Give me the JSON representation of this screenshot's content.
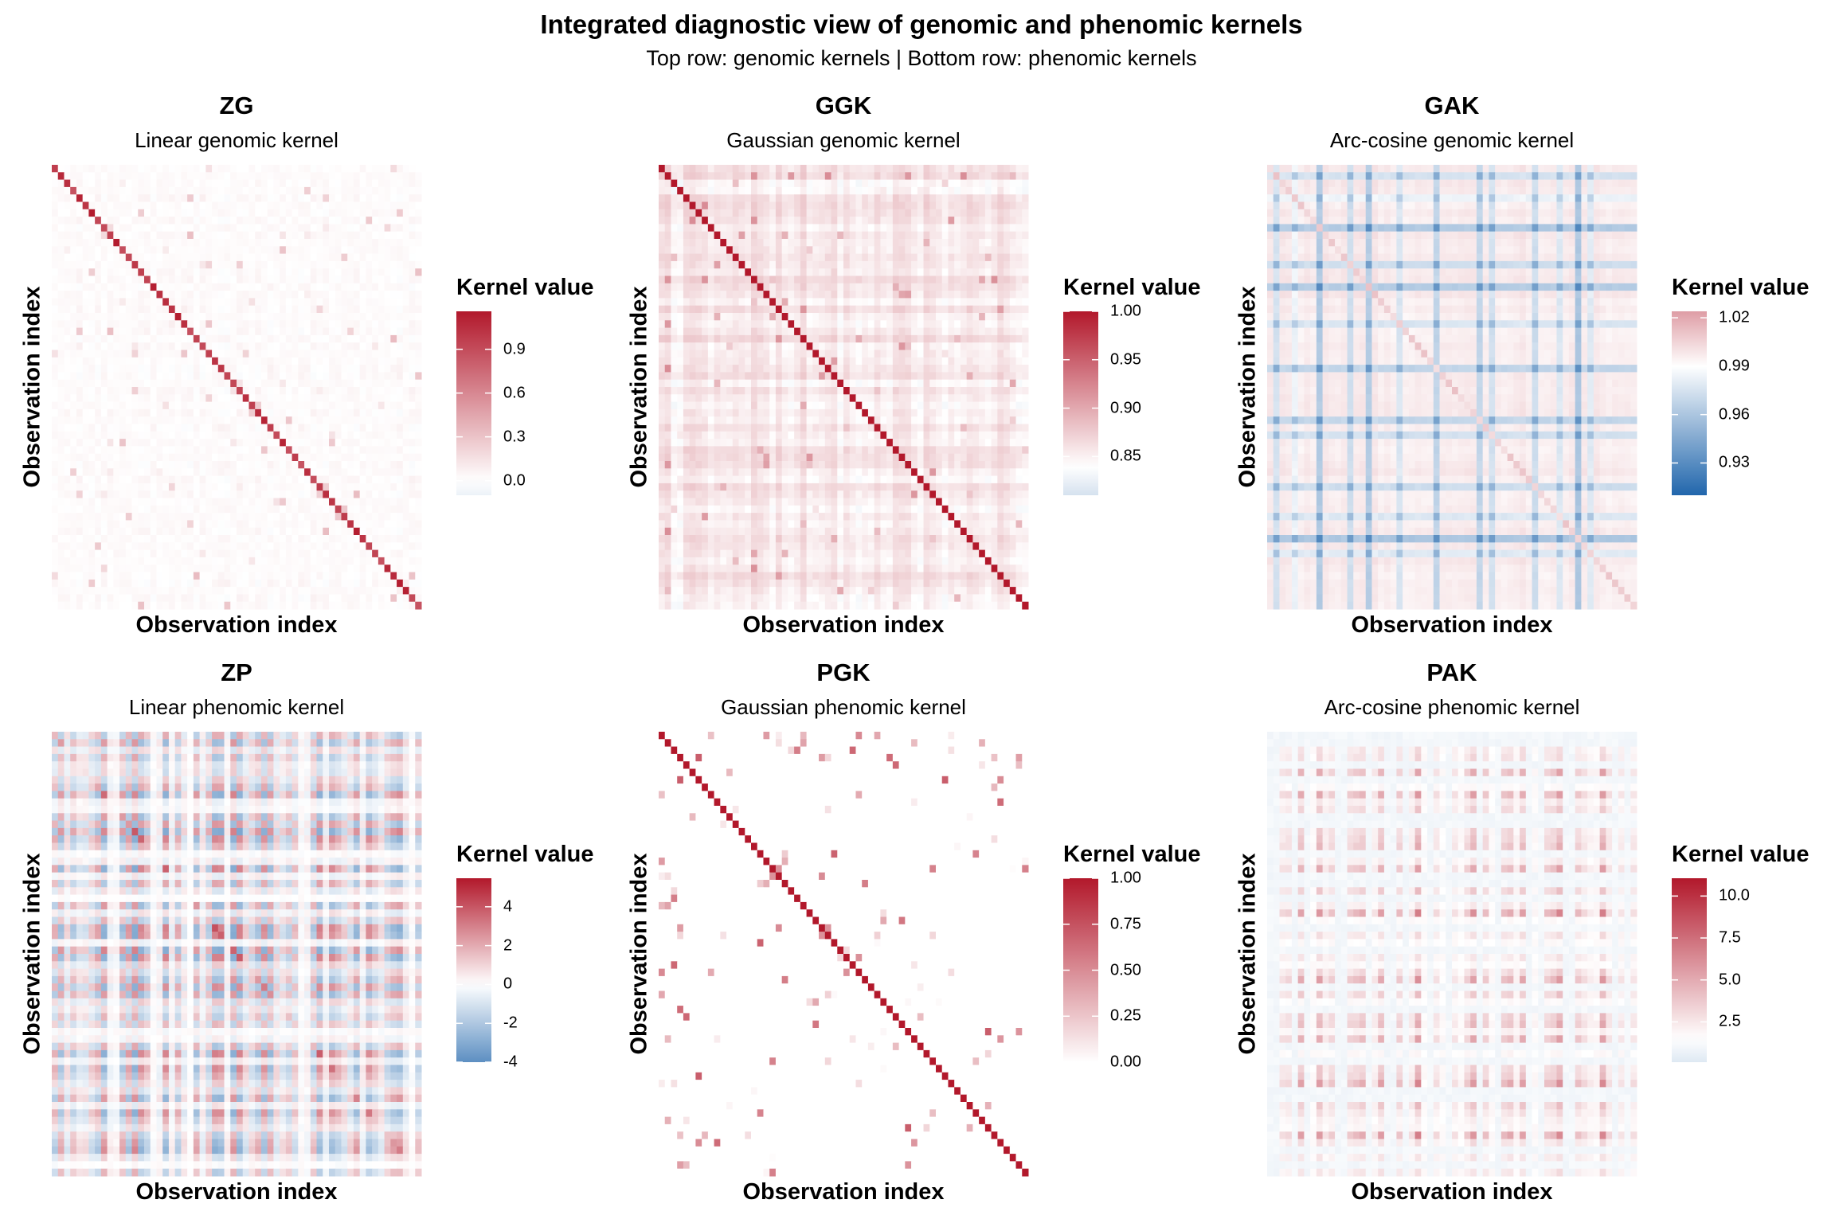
{
  "title": "Integrated diagnostic view of genomic and phenomic kernels",
  "subtitle": "Top row: genomic kernels | Bottom row: phenomic kernels",
  "colors": {
    "low": "#2166AC",
    "mid": "#FFFFFF",
    "high": "#B2182B"
  },
  "chart_data": [
    {
      "type": "heatmap",
      "title": "ZG",
      "subtitle": "Linear genomic kernel",
      "xlabel": "Observation index",
      "ylabel": "Observation index",
      "legend_title": "Kernel value",
      "n": 60,
      "range": [
        -0.1,
        1.16
      ],
      "midpoint": 0,
      "diagonal": "0.85-1.16",
      "ticks": [
        {
          "v": 0.9,
          "label": "0.9"
        },
        {
          "v": 0.6,
          "label": "0.6"
        },
        {
          "v": 0.3,
          "label": "0.3"
        },
        {
          "v": 0.0,
          "label": "0.0"
        }
      ]
    },
    {
      "type": "heatmap",
      "title": "GGK",
      "subtitle": "Gaussian genomic kernel",
      "xlabel": "Observation index",
      "ylabel": "Observation index",
      "legend_title": "Kernel value",
      "n": 60,
      "range": [
        0.81,
        1.0
      ],
      "midpoint": 0.84,
      "diagonal": "1.00",
      "ticks": [
        {
          "v": 1.0,
          "label": "1.00"
        },
        {
          "v": 0.95,
          "label": "0.95"
        },
        {
          "v": 0.9,
          "label": "0.90"
        },
        {
          "v": 0.85,
          "label": "0.85"
        }
      ]
    },
    {
      "type": "heatmap",
      "title": "GAK",
      "subtitle": "Arc-cosine genomic kernel",
      "xlabel": "Observation index",
      "ylabel": "Observation index",
      "legend_title": "Kernel value",
      "n": 60,
      "range": [
        0.91,
        1.024
      ],
      "midpoint": 0.99,
      "diagonal": "1.00-1.02",
      "ticks": [
        {
          "v": 1.02,
          "label": "1.02"
        },
        {
          "v": 0.99,
          "label": "0.99"
        },
        {
          "v": 0.96,
          "label": "0.96"
        },
        {
          "v": 0.93,
          "label": "0.93"
        }
      ]
    },
    {
      "type": "heatmap",
      "title": "ZP",
      "subtitle": "Linear phenomic kernel",
      "xlabel": "Observation index",
      "ylabel": "Observation index",
      "legend_title": "Kernel value",
      "n": 60,
      "range": [
        -4,
        5.47
      ],
      "midpoint": 0,
      "diagonal": "varies",
      "ticks": [
        {
          "v": 4,
          "label": "4"
        },
        {
          "v": 2,
          "label": "2"
        },
        {
          "v": 0,
          "label": "0"
        },
        {
          "v": -2,
          "label": "-2"
        },
        {
          "v": -4,
          "label": "-4"
        }
      ]
    },
    {
      "type": "heatmap",
      "title": "PGK",
      "subtitle": "Gaussian phenomic kernel",
      "xlabel": "Observation index",
      "ylabel": "Observation index",
      "legend_title": "Kernel value",
      "n": 60,
      "range": [
        0,
        1
      ],
      "midpoint": 0,
      "diagonal": "1.00",
      "ticks": [
        {
          "v": 1.0,
          "label": "1.00"
        },
        {
          "v": 0.75,
          "label": "0.75"
        },
        {
          "v": 0.5,
          "label": "0.50"
        },
        {
          "v": 0.25,
          "label": "0.25"
        },
        {
          "v": 0.0,
          "label": "0.00"
        }
      ]
    },
    {
      "type": "heatmap",
      "title": "PAK",
      "subtitle": "Arc-cosine phenomic kernel",
      "xlabel": "Observation index",
      "ylabel": "Observation index",
      "legend_title": "Kernel value",
      "n": 60,
      "range": [
        0.1,
        11.06
      ],
      "midpoint": 1.5,
      "diagonal": "varies",
      "ticks": [
        {
          "v": 10,
          "label": "10.0"
        },
        {
          "v": 7.5,
          "label": "7.5"
        },
        {
          "v": 5,
          "label": "5.0"
        },
        {
          "v": 2.5,
          "label": "2.5"
        }
      ]
    }
  ]
}
